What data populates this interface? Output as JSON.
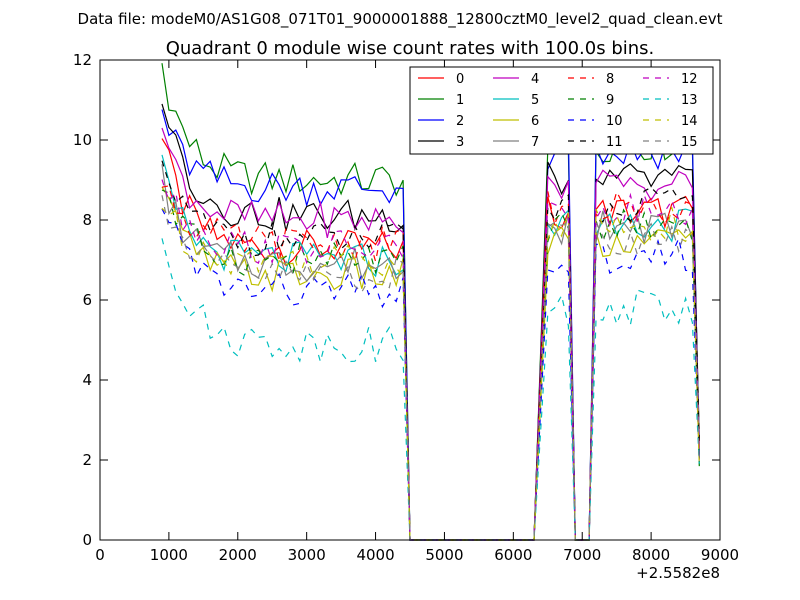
{
  "figure": {
    "suptitle": "Data file: modeM0/AS1G08_071T01_9000001888_12800cztM0_level2_quad_clean.evt",
    "offset_label": "+2.5582e8"
  },
  "chart_data": {
    "type": "line",
    "title": "Quadrant 0 module wise count rates with 100.0s bins.",
    "xlabel": "",
    "ylabel": "",
    "x_offset": 255820000,
    "xlim": [
      0,
      9000
    ],
    "ylim": [
      0,
      12
    ],
    "xticks": [
      0,
      1000,
      2000,
      3000,
      4000,
      5000,
      6000,
      7000,
      8000,
      9000
    ],
    "yticks": [
      0,
      2,
      4,
      6,
      8,
      10,
      12
    ],
    "grid": false,
    "legend": {
      "placement": "top-right",
      "columns": 4
    },
    "segments": [
      {
        "x0": 900,
        "x1": 4400,
        "decay": true
      },
      {
        "x0": 6500,
        "x1": 6800,
        "decay": false
      },
      {
        "x0": 7200,
        "x1": 8700,
        "decay": false
      }
    ],
    "drop_points": [
      4500,
      6300,
      6900,
      7100
    ],
    "zero_x": [
      4600,
      4800,
      5000,
      5200,
      5400,
      5600,
      5800,
      6000,
      6200,
      7000
    ],
    "series": [
      {
        "name": "0",
        "color": "#ff0000",
        "dash": "solid",
        "base": 7.3,
        "start": 10.0
      },
      {
        "name": "1",
        "color": "#008000",
        "dash": "solid",
        "base": 9.0,
        "start": 11.9
      },
      {
        "name": "2",
        "color": "#0000ff",
        "dash": "solid",
        "base": 8.8,
        "start": 10.7
      },
      {
        "name": "3",
        "color": "#000000",
        "dash": "solid",
        "base": 8.1,
        "start": 11.3
      },
      {
        "name": "4",
        "color": "#bf00bf",
        "dash": "solid",
        "base": 8.0,
        "start": 10.3
      },
      {
        "name": "5",
        "color": "#00bfbf",
        "dash": "solid",
        "base": 7.0,
        "start": 9.2
      },
      {
        "name": "6",
        "color": "#bfbf00",
        "dash": "solid",
        "base": 6.6,
        "start": 8.9
      },
      {
        "name": "7",
        "color": "#808080",
        "dash": "solid",
        "base": 6.9,
        "start": 9.0
      },
      {
        "name": "8",
        "color": "#ff0000",
        "dash": "dashed",
        "base": 7.4,
        "start": 9.2
      },
      {
        "name": "9",
        "color": "#008000",
        "dash": "dashed",
        "base": 7.0,
        "start": 8.9
      },
      {
        "name": "10",
        "color": "#0000ff",
        "dash": "dashed",
        "base": 6.2,
        "start": 8.7
      },
      {
        "name": "11",
        "color": "#000000",
        "dash": "dashed",
        "base": 7.5,
        "start": 9.4
      },
      {
        "name": "12",
        "color": "#bf00bf",
        "dash": "dashed",
        "base": 7.3,
        "start": 9.3
      },
      {
        "name": "13",
        "color": "#00bfbf",
        "dash": "dashed",
        "base": 4.9,
        "start": 7.9
      },
      {
        "name": "14",
        "color": "#bfbf00",
        "dash": "dashed",
        "base": 7.0,
        "start": 8.5
      },
      {
        "name": "15",
        "color": "#808080",
        "dash": "dashed",
        "base": 6.6,
        "start": 8.6
      }
    ]
  }
}
